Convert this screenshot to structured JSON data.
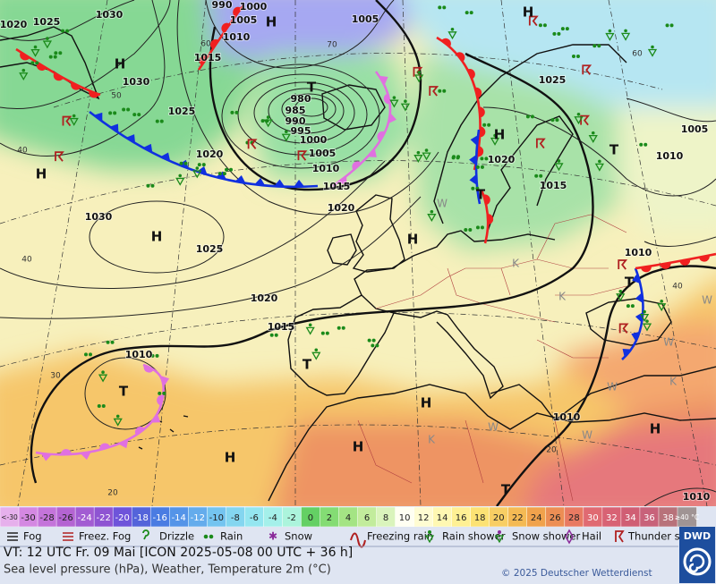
{
  "map": {
    "pressure_labels": [
      "1020",
      "1025",
      "1030",
      "990",
      "1000",
      "1005",
      "1010",
      "1015",
      "1005",
      "1030",
      "1025",
      "980",
      "985",
      "990",
      "995",
      "1000",
      "1005",
      "1010",
      "1015",
      "1020",
      "1020",
      "1030",
      "1025",
      "1020",
      "1015",
      "1010",
      "1025",
      "1020",
      "1015",
      "1010",
      "1005",
      "1010",
      "1010",
      "1010"
    ],
    "pressure_centers": [
      "H",
      "H",
      "H",
      "T",
      "H",
      "H",
      "H",
      "H",
      "T",
      "T",
      "T",
      "T",
      "T",
      "H",
      "H",
      "H",
      "H",
      "T"
    ],
    "latitude_labels": [
      "60",
      "70",
      "50",
      "40",
      "40",
      "30",
      "20",
      "60",
      "40",
      "20"
    ],
    "air_mass_labels": [
      "K",
      "K",
      "W",
      "W",
      "W",
      "K",
      "W",
      "K",
      "W",
      "W"
    ]
  },
  "temperature_scale": {
    "below_label": "<-30",
    "steps": [
      -30,
      -28,
      -26,
      -24,
      -22,
      -20,
      -18,
      -16,
      -14,
      -12,
      -10,
      -8,
      -6,
      -4,
      -2,
      0,
      2,
      4,
      6,
      8,
      10,
      12,
      14,
      16,
      18,
      20,
      22,
      24,
      26,
      28,
      30,
      32,
      34,
      36,
      38
    ],
    "above_label": "≥40 °C",
    "colors": [
      "#e6b0ec",
      "#d488e2",
      "#c474da",
      "#b464d2",
      "#a25cd2",
      "#8e54d2",
      "#6e54da",
      "#5464da",
      "#4a7ce2",
      "#5494e8",
      "#64acec",
      "#74c4f0",
      "#84d6f0",
      "#94e6f0",
      "#a4f0ea",
      "#acf4dc",
      "#64d064",
      "#84dc74",
      "#a4e484",
      "#c2ec9c",
      "#daf4bc",
      "#fffff2",
      "#fffcd2",
      "#fff8b2",
      "#fff094",
      "#fce274",
      "#f8ce64",
      "#f4ba54",
      "#f0a24c",
      "#ec8e54",
      "#e87a62",
      "#e06a72",
      "#d86274",
      "#d05e74",
      "#c8627a",
      "#b8727a",
      "#a09494"
    ]
  },
  "weather_legend": [
    "Fog",
    "Freez. Fog",
    "Drizzle",
    "Rain",
    "Snow",
    "Freezing rain",
    "Rain shower",
    "Snow shower",
    "Hail",
    "Thunder storm"
  ],
  "footer": {
    "valid_time": "VT: 12 UTC Fr.  09 Mai [ICON 2025-05-08  00 UTC + 36 h]",
    "parameters": "Sea level pressure (hPa), Weather, Temperature 2m (°C)",
    "copyright": "© 2025 Deutscher Wetterdienst",
    "logo": "DWD"
  }
}
